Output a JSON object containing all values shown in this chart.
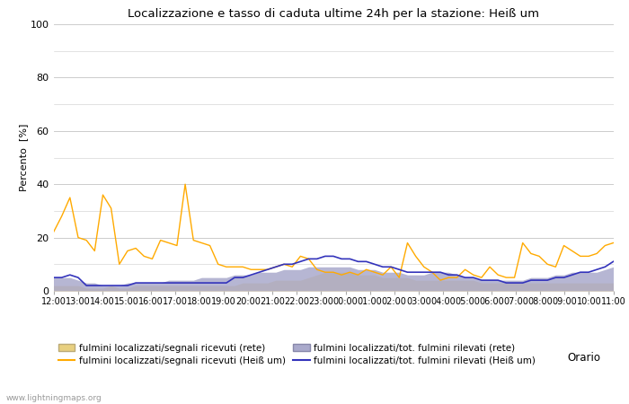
{
  "title": "Localizzazione e tasso di caduta ultime 24h per la stazione: Heiß um",
  "ylabel": "Percento  [%]",
  "xlabel": "Orario",
  "ylim": [
    0,
    100
  ],
  "yticks": [
    0,
    20,
    40,
    60,
    80,
    100
  ],
  "yticks_minor": [
    10,
    30,
    50,
    70,
    90
  ],
  "background_color": "#ffffff",
  "grid_color": "#cccccc",
  "watermark": "www.lightningmaps.org",
  "x_labels": [
    "12:00",
    "13:00",
    "14:00",
    "15:00",
    "16:00",
    "17:00",
    "18:00",
    "19:00",
    "20:00",
    "21:00",
    "22:00",
    "23:00",
    "00:00",
    "01:00",
    "02:00",
    "03:00",
    "04:00",
    "05:00",
    "06:00",
    "07:00",
    "08:00",
    "09:00",
    "10:00",
    "11:00"
  ],
  "orange_line": [
    22,
    28,
    35,
    20,
    19,
    15,
    36,
    31,
    10,
    15,
    16,
    13,
    12,
    19,
    18,
    17,
    40,
    19,
    18,
    17,
    10,
    9,
    9,
    9,
    8,
    8,
    8,
    9,
    10,
    9,
    13,
    12,
    8,
    7,
    7,
    6,
    7,
    6,
    8,
    7,
    6,
    9,
    5,
    18,
    13,
    9,
    7,
    4,
    5,
    5,
    8,
    6,
    5,
    9,
    6,
    5,
    5,
    18,
    14,
    13,
    10,
    9,
    17,
    15,
    13,
    13,
    14,
    17,
    18
  ],
  "blue_line": [
    5,
    5,
    6,
    5,
    2,
    2,
    2,
    2,
    2,
    2,
    3,
    3,
    3,
    3,
    3,
    3,
    3,
    3,
    3,
    3,
    3,
    3,
    5,
    5,
    6,
    7,
    8,
    9,
    10,
    10,
    11,
    12,
    12,
    13,
    13,
    12,
    12,
    11,
    11,
    10,
    9,
    9,
    8,
    7,
    7,
    7,
    7,
    7,
    6,
    6,
    5,
    5,
    4,
    4,
    4,
    3,
    3,
    3,
    4,
    4,
    4,
    5,
    5,
    6,
    7,
    7,
    8,
    9,
    11
  ],
  "orange_fill": [
    2,
    2,
    2,
    2,
    1,
    1,
    1,
    2,
    1,
    1,
    2,
    2,
    2,
    2,
    2,
    2,
    2,
    2,
    2,
    2,
    2,
    2,
    2,
    3,
    3,
    3,
    3,
    4,
    4,
    4,
    4,
    5,
    6,
    7,
    7,
    7,
    7,
    6,
    6,
    6,
    5,
    5,
    5,
    5,
    4,
    4,
    4,
    4,
    4,
    4,
    4,
    4,
    3,
    3,
    3,
    3,
    3,
    3,
    3,
    3,
    3,
    3,
    3,
    3,
    3,
    3,
    3,
    3,
    3
  ],
  "blue_fill": [
    5,
    5,
    5,
    4,
    3,
    3,
    2,
    2,
    2,
    3,
    3,
    3,
    3,
    3,
    4,
    4,
    4,
    4,
    5,
    5,
    5,
    5,
    6,
    6,
    6,
    7,
    7,
    7,
    8,
    8,
    8,
    9,
    9,
    9,
    9,
    9,
    9,
    8,
    8,
    8,
    7,
    7,
    7,
    6,
    6,
    6,
    7,
    7,
    7,
    6,
    5,
    5,
    4,
    4,
    4,
    4,
    4,
    4,
    5,
    5,
    5,
    6,
    6,
    7,
    7,
    7,
    7,
    8,
    9
  ],
  "orange_line_color": "#ffaa00",
  "blue_line_color": "#3333bb",
  "orange_fill_color": "#e8d080",
  "blue_fill_color": "#aaaacc",
  "legend_labels": [
    "fulmini localizzati/segnali ricevuti (rete)",
    "fulmini localizzati/segnali ricevuti (Heiß um)",
    "fulmini localizzati/tot. fulmini rilevati (rete)",
    "fulmini localizzati/tot. fulmini rilevati (Heiß um)"
  ]
}
